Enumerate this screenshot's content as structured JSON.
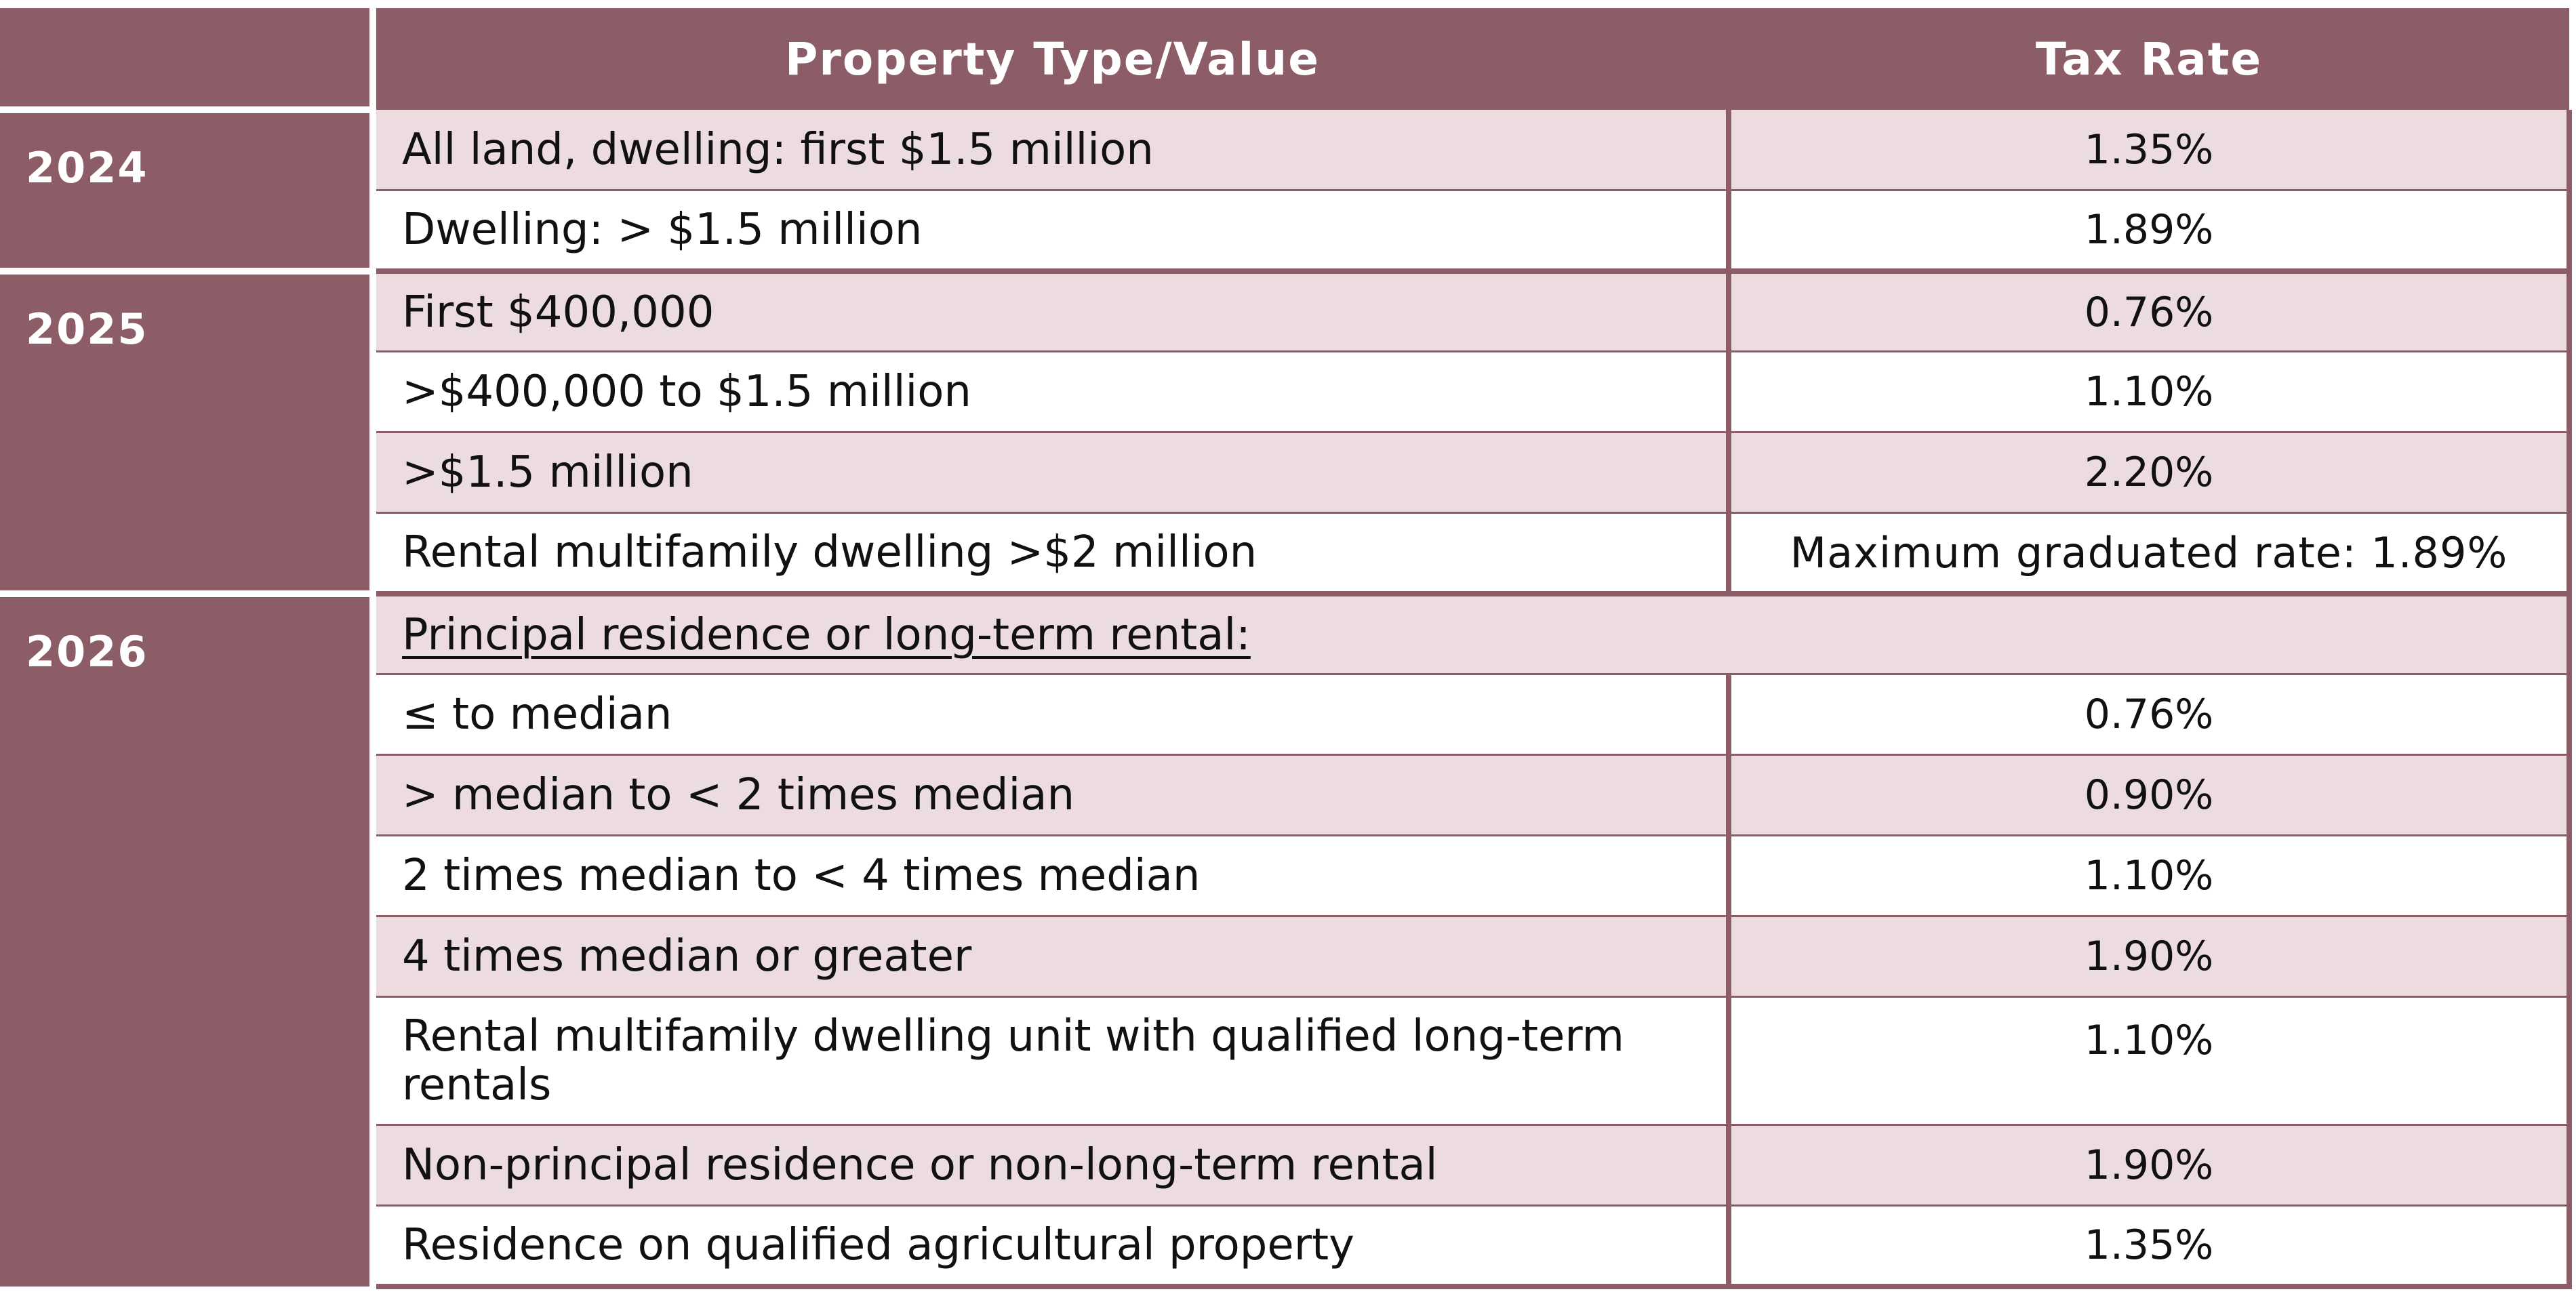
{
  "header": {
    "property_col": "Property Type/Value",
    "rate_col": "Tax Rate"
  },
  "rows": [
    {
      "year": "2024",
      "property": "All land, dwelling: first $1.5 million",
      "rate": "1.35%"
    },
    {
      "property": "Dwelling: > $1.5 million",
      "rate": "1.89%"
    },
    {
      "year": "2025",
      "property": "First $400,000",
      "rate": "0.76%"
    },
    {
      "property": ">$400,000 to $1.5 million",
      "rate": "1.10%"
    },
    {
      "property": ">$1.5 million",
      "rate": "2.20%"
    },
    {
      "property": "Rental multifamily dwelling >$2 million",
      "rate": "Maximum graduated rate: 1.89%"
    },
    {
      "year": "2026",
      "property": "Principal residence or long-term rental:",
      "rate": ""
    },
    {
      "property": "≤ to median",
      "rate": "0.76%"
    },
    {
      "property": "> median to < 2 times median",
      "rate": "0.90%"
    },
    {
      "property": "2 times median to < 4 times median",
      "rate": "1.10%"
    },
    {
      "property": "4 times median or greater",
      "rate": "1.90%"
    },
    {
      "property": "Rental multifamily dwelling unit with qualified long-term rentals",
      "rate": "1.10%"
    },
    {
      "property": "Non-principal residence or non-long-term rental",
      "rate": "1.90%"
    },
    {
      "property": "Residence on qualified agricultural property",
      "rate": "1.35%"
    }
  ],
  "colors": {
    "header_bg": "#8c5d66",
    "row_shade": "#ecdcdf",
    "row_plain": "#ffffff"
  }
}
